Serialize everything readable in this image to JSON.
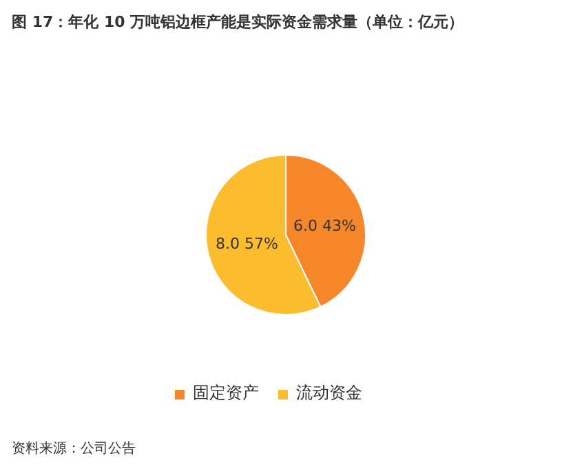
{
  "chart_data": {
    "type": "pie",
    "title": "图 17：年化 10 万吨铝边框产能是实际资金需求量（单位：亿元）",
    "categories": [
      "固定资产",
      "流动资金"
    ],
    "values": [
      6.0,
      8.0
    ],
    "colors": [
      "#f5872a",
      "#fbbd2e"
    ],
    "value_labels": [
      "6.0 43%",
      "8.0 57%"
    ],
    "legend": "bottom",
    "annotations": [
      "资料来源：公司公告"
    ]
  }
}
